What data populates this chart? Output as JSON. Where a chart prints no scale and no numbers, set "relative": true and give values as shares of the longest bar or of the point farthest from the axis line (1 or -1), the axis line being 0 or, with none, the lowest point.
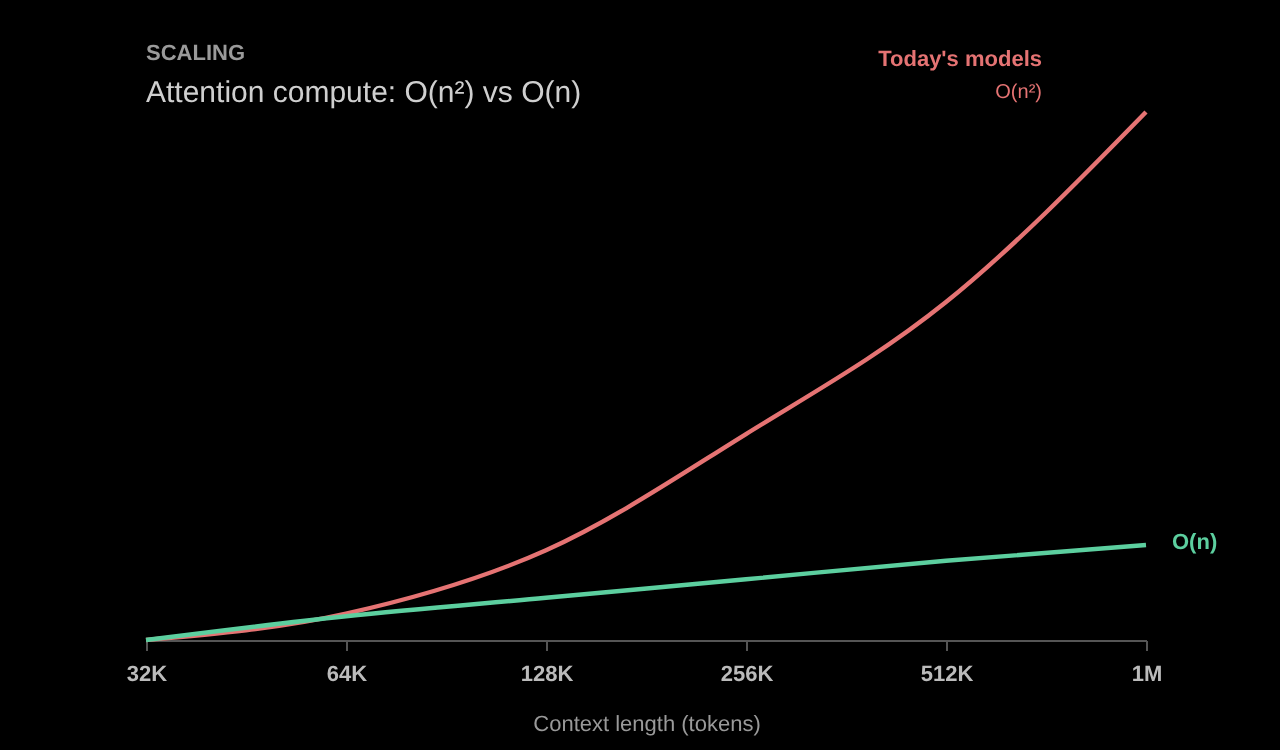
{
  "chart_data": {
    "type": "line",
    "title": "SCALING",
    "subtitle": "Attention compute: O(n²) vs O(n)",
    "xlabel": "Context length (tokens)",
    "relative": true,
    "categories": [
      "32K",
      "64K",
      "128K",
      "256K",
      "512K",
      "1M"
    ],
    "grid": false,
    "legend": false,
    "series": [
      {
        "name": "Today's models",
        "color": "#e57373",
        "values": [
          0,
          0.05,
          0.17,
          0.39,
          0.64,
          1
        ]
      },
      {
        "name": "O(n)",
        "color": "#5ccf9f",
        "values": [
          0,
          0.045,
          0.08,
          0.115,
          0.15,
          0.18
        ]
      }
    ],
    "annotations": [
      "O(n²)"
    ]
  }
}
